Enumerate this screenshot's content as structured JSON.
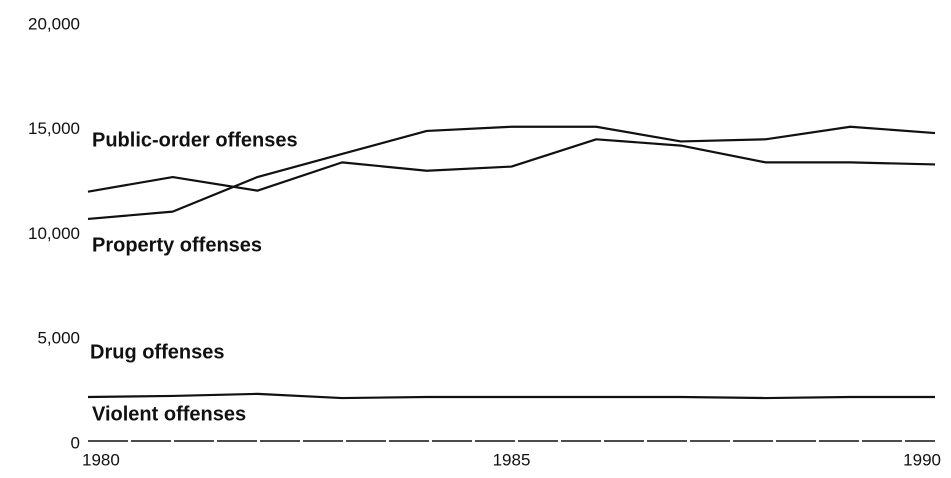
{
  "chart_data": {
    "type": "line",
    "x": [
      1980,
      1981,
      1982,
      1983,
      1984,
      1985,
      1986,
      1987,
      1988,
      1989,
      1990
    ],
    "series": [
      {
        "name": "Public-order offenses",
        "color": "#111111",
        "values": [
          10600,
          10950,
          12600,
          13700,
          14800,
          15000,
          15000,
          14300,
          14400,
          15000,
          14700
        ]
      },
      {
        "name": "Property offenses",
        "color": "#111111",
        "values": [
          11900,
          12600,
          11950,
          13300,
          12900,
          13100,
          14400,
          14100,
          13300,
          13300,
          13200
        ]
      },
      {
        "name": "Drug offenses",
        "color": "#111111",
        "values": [
          2100,
          2150,
          2250,
          2050,
          2100,
          2100,
          2100,
          2100,
          2050,
          2100,
          2100
        ]
      },
      {
        "name": "Violent offenses",
        "color": "#111111",
        "values": [
          0,
          0,
          0,
          0,
          0,
          0,
          0,
          0,
          0,
          0,
          0
        ]
      }
    ],
    "xlim": [
      1980,
      1990
    ],
    "xticks": [
      1980,
      1985,
      1990
    ],
    "ylim": [
      0,
      20000
    ],
    "yticks": [
      0,
      {
        "value": 5000,
        "label": "5,000"
      },
      {
        "value": 10000,
        "label": "10,000"
      },
      {
        "value": 15000,
        "label": "15,000"
      },
      {
        "value": 20000,
        "label": "20,000"
      }
    ],
    "grid": false
  }
}
